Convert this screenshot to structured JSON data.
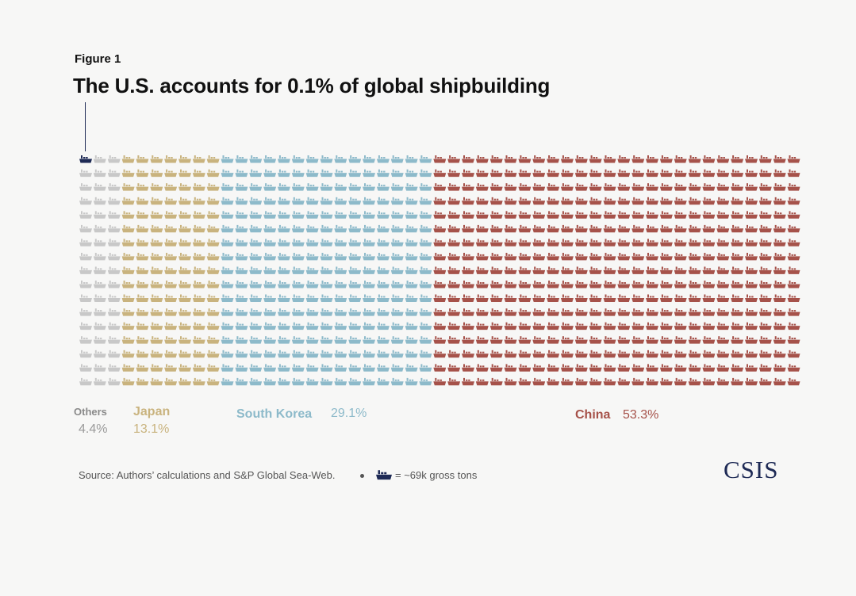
{
  "figure_label": "Figure 1",
  "chart_data": {
    "type": "waffle",
    "title": "The U.S. accounts for 0.1% of global shipbuilding",
    "unit_legend": "= ~69k gross tons",
    "unit_icon": "ship-icon",
    "rows": 17,
    "columns_by_category": [
      3,
      7,
      15,
      26
    ],
    "highlight": {
      "name": "U.S.",
      "share_percent": 0.1,
      "units": 1,
      "color": "#1e2a55"
    },
    "categories": [
      {
        "name": "Others",
        "value_label": "4.4%",
        "value": 4.4,
        "color": "#c8c8c8"
      },
      {
        "name": "Japan",
        "value_label": "13.1%",
        "value": 13.1,
        "color": "#c9b37e"
      },
      {
        "name": "South Korea",
        "value_label": "29.1%",
        "value": 29.1,
        "color": "#8dbaca"
      },
      {
        "name": "China",
        "value_label": "53.3%",
        "value": 53.3,
        "color": "#a6524a"
      }
    ]
  },
  "source": "Source: Authors’ calculations and S&P Global Sea-Web.",
  "logo": "CSIS"
}
